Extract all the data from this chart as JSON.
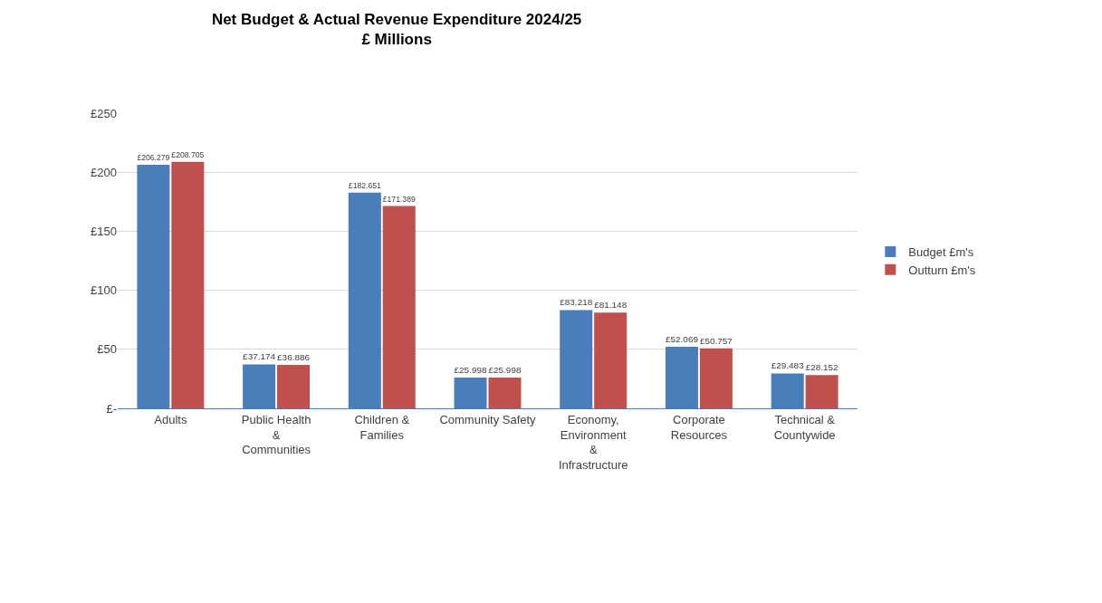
{
  "chart_data": {
    "type": "bar",
    "title": "Net Budget & Actual Revenue Expenditure 2024/25",
    "subtitle": "£ Millions",
    "categories": [
      "Adults",
      "Public Health & Communities",
      "Children & Families",
      "Community Safety",
      "Economy, Environment & Infrastructure",
      "Corporate Resources",
      "Technical & Countywide"
    ],
    "series": [
      {
        "name": "Budget £m's",
        "color": "#4a7ebb",
        "values": [
          206.279,
          37.174,
          182.651,
          25.998,
          83.218,
          52.069,
          29.483
        ],
        "value_labels": [
          "£206.279",
          "£37.174",
          "£182.651",
          "£25.998",
          "£83.218",
          "£52.069",
          "£29.483"
        ]
      },
      {
        "name": "Outturn £m's",
        "color": "#c0504d",
        "values": [
          208.705,
          36.886,
          171.389,
          25.998,
          81.148,
          50.757,
          28.152
        ],
        "value_labels": [
          "£208.705",
          "£36.886",
          "£171.389",
          "£25.998",
          "£81.148",
          "£50.757",
          "£28.152"
        ]
      }
    ],
    "ylim": [
      0,
      250
    ],
    "yticks": [
      {
        "value": 0,
        "label": "£-"
      },
      {
        "value": 50,
        "label": "£50"
      },
      {
        "value": 100,
        "label": "£100"
      },
      {
        "value": 150,
        "label": "£150"
      },
      {
        "value": 200,
        "label": "£200"
      },
      {
        "value": 250,
        "label": "£250"
      }
    ],
    "grid": "y",
    "legend": "right"
  }
}
